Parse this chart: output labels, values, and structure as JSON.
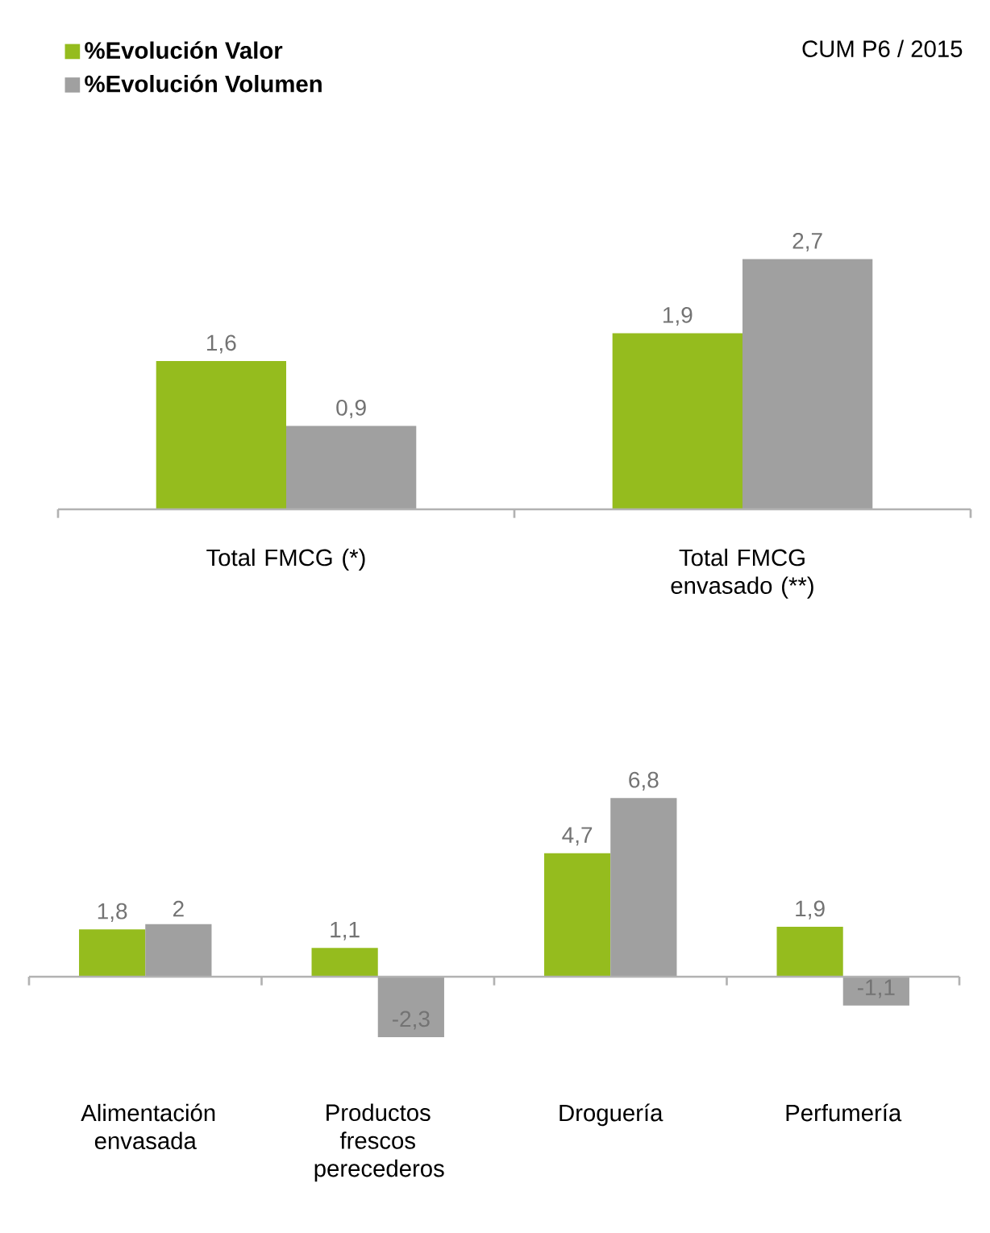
{
  "chart_data": [
    {
      "type": "bar",
      "categories": [
        "Total FMCG (*)",
        "Total FMCG envasado (**)"
      ],
      "legend": "top left",
      "annotations": [
        "CUM P6 / 2015"
      ],
      "series": [
        {
          "name": "%Evolución Valor",
          "color": "#95bc1e",
          "values": [
            1.6,
            1.9
          ],
          "value_labels": [
            "1,6",
            "1,9"
          ]
        },
        {
          "name": "%Evolución Volumen",
          "color": "#a0a0a0",
          "values": [
            0.9,
            2.7
          ],
          "value_labels": [
            "0,9",
            "2,7"
          ]
        }
      ]
    },
    {
      "type": "bar",
      "categories": [
        "Alimentación envasada",
        "Productos frescos perecederos",
        "Droguería",
        "Perfumería"
      ],
      "series": [
        {
          "color": "#95bc1e",
          "values": [
            1.8,
            1.1,
            4.7,
            1.9
          ],
          "value_labels": [
            "1,8",
            "1,1",
            "4,7",
            "1,9"
          ]
        },
        {
          "color": "#a0a0a0",
          "values": [
            2,
            -2.3,
            6.8,
            -1.1
          ],
          "value_labels": [
            "2",
            "-2,3",
            "6,8",
            "-1,1"
          ]
        }
      ]
    }
  ]
}
